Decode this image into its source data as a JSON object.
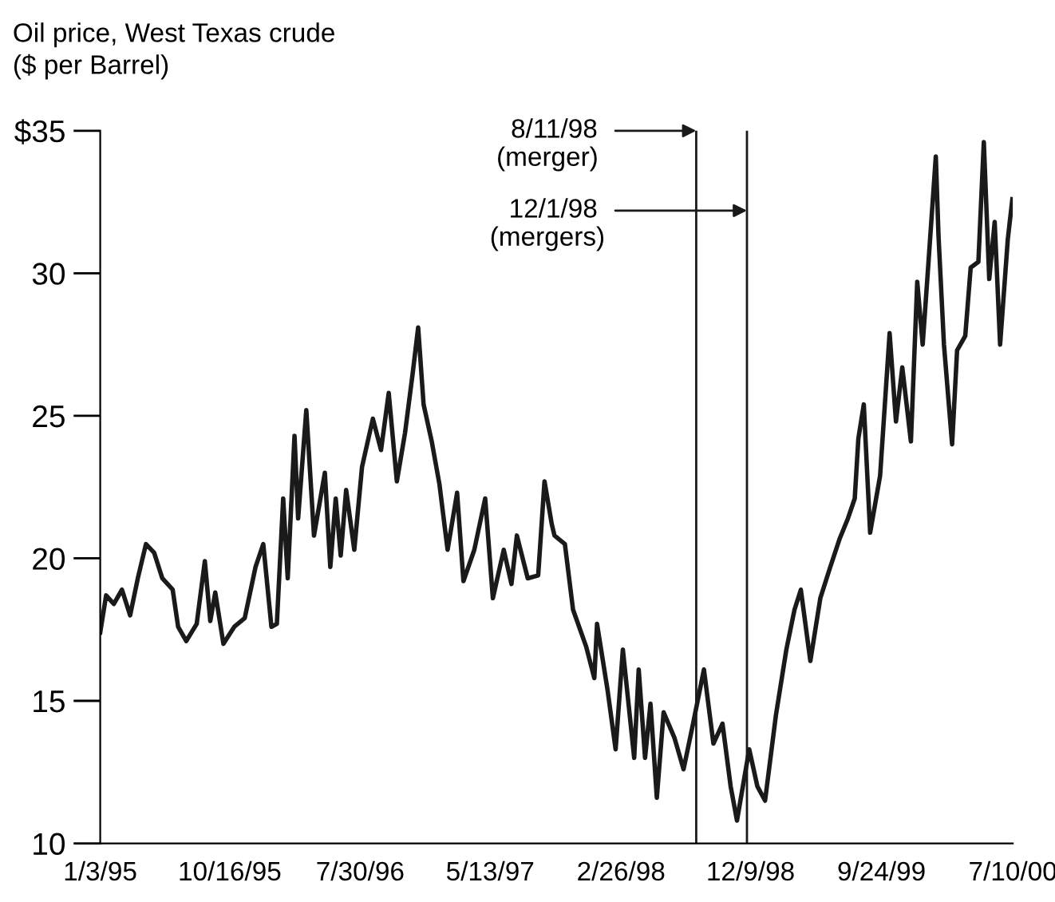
{
  "chart_data": {
    "type": "line",
    "title": "Oil price, West Texas crude",
    "subtitle": "($ per Barrel)",
    "x": [
      "1995-01-03",
      "1995-01-16",
      "1995-02-02",
      "1995-02-20",
      "1995-03-10",
      "1995-03-27",
      "1995-04-14",
      "1995-05-02",
      "1995-05-20",
      "1995-06-12",
      "1995-06-24",
      "1995-07-12",
      "1995-08-04",
      "1995-08-22",
      "1995-09-03",
      "1995-09-14",
      "1995-10-02",
      "1995-10-26",
      "1995-11-18",
      "1995-12-12",
      "1995-12-29",
      "1996-01-16",
      "1996-01-28",
      "1996-02-11",
      "1996-02-21",
      "1996-03-07",
      "1996-03-15",
      "1996-04-02",
      "1996-04-19",
      "1996-05-13",
      "1996-05-25",
      "1996-06-06",
      "1996-06-17",
      "1996-06-29",
      "1996-07-17",
      "1996-08-03",
      "1996-08-27",
      "1996-09-14",
      "1996-10-01",
      "1996-10-19",
      "1996-11-06",
      "1996-11-23",
      "1996-12-05",
      "1996-12-17",
      "1997-01-04",
      "1997-01-21",
      "1997-02-08",
      "1997-03-01",
      "1997-03-15",
      "1997-04-08",
      "1997-05-02",
      "1997-05-19",
      "1997-06-12",
      "1997-06-29",
      "1997-07-11",
      "1997-08-04",
      "1997-08-27",
      "1997-09-10",
      "1997-09-26",
      "1997-10-02",
      "1997-10-25",
      "1997-11-12",
      "1997-12-11",
      "1997-12-29",
      "1998-01-04",
      "1998-01-27",
      "1998-02-14",
      "1998-03-02",
      "1998-03-27",
      "1998-04-06",
      "1998-04-20",
      "1998-05-02",
      "1998-05-16",
      "1998-05-31",
      "1998-06-24",
      "1998-07-14",
      "1998-08-04",
      "1998-08-28",
      "1998-09-18",
      "1998-10-08",
      "1998-10-26",
      "1998-11-09",
      "1998-12-06",
      "1998-12-24",
      "1999-01-10",
      "1999-02-03",
      "1999-02-26",
      "1999-03-16",
      "1999-03-30",
      "1999-04-20",
      "1999-05-12",
      "1999-06-01",
      "1999-06-24",
      "1999-07-12",
      "1999-07-27",
      "1999-08-04",
      "1999-08-16",
      "1999-08-30",
      "1999-09-21",
      "1999-10-12",
      "1999-10-26",
      "1999-11-09",
      "1999-11-28",
      "1999-12-12",
      "1999-12-24",
      "2000-01-05",
      "2000-01-22",
      "2000-01-28",
      "2000-02-09",
      "2000-02-27",
      "2000-03-09",
      "2000-03-27",
      "2000-04-08",
      "2000-04-25",
      "2000-05-07",
      "2000-05-19",
      "2000-05-31",
      "2000-06-12",
      "2000-06-29",
      "2000-07-09"
    ],
    "series": [
      {
        "color": "#1a1a1a",
        "values": [
          17.4,
          18.7,
          18.4,
          18.9,
          18.0,
          19.3,
          20.5,
          20.2,
          19.3,
          18.9,
          17.6,
          17.1,
          17.7,
          19.9,
          17.8,
          18.8,
          17.0,
          17.6,
          17.9,
          19.7,
          20.5,
          17.6,
          17.7,
          22.1,
          19.3,
          24.3,
          21.4,
          25.2,
          20.8,
          23.0,
          19.7,
          22.1,
          20.1,
          22.4,
          20.3,
          23.2,
          24.9,
          23.8,
          25.8,
          22.7,
          24.4,
          26.5,
          28.1,
          25.4,
          24.1,
          22.6,
          20.3,
          22.3,
          19.2,
          20.3,
          22.1,
          18.6,
          20.3,
          19.1,
          20.8,
          19.3,
          19.4,
          22.7,
          21.2,
          20.8,
          20.5,
          18.2,
          16.9,
          15.8,
          17.7,
          15.4,
          13.3,
          16.8,
          13.0,
          16.1,
          13.0,
          14.9,
          11.6,
          14.6,
          13.7,
          12.6,
          14.2,
          16.1,
          13.5,
          14.2,
          12.0,
          10.8,
          13.3,
          12.0,
          11.5,
          14.5,
          16.8,
          18.2,
          18.9,
          16.4,
          18.6,
          19.6,
          20.7,
          21.4,
          22.1,
          24.2,
          25.4,
          20.9,
          22.9,
          27.9,
          24.8,
          26.7,
          24.1,
          29.7,
          27.5,
          30.2,
          34.1,
          31.3,
          27.5,
          24.0,
          27.3,
          27.8,
          30.2,
          30.4,
          34.6,
          29.8,
          31.8,
          27.5,
          31.2,
          32.6
        ]
      }
    ],
    "xlim": [
      "1995-01-03",
      "2000-07-10"
    ],
    "xticks": [
      {
        "value": "1995-01-03",
        "label": "1/3/95"
      },
      {
        "value": "1995-10-16",
        "label": "10/16/95"
      },
      {
        "value": "1996-07-30",
        "label": "7/30/96"
      },
      {
        "value": "1997-05-13",
        "label": "5/13/97"
      },
      {
        "value": "1998-02-26",
        "label": "2/26/98"
      },
      {
        "value": "1998-12-09",
        "label": "12/9/98"
      },
      {
        "value": "1999-09-24",
        "label": "9/24/99"
      },
      {
        "value": "2000-07-10",
        "label": "7/10/00"
      }
    ],
    "ylim": [
      10,
      35
    ],
    "yticks": [
      10,
      15,
      20,
      25,
      30,
      {
        "value": 35,
        "label": "$35"
      }
    ],
    "ref_lines": [
      {
        "axis": "x",
        "value": "1998-08-11",
        "label": "8/11/98",
        "color": "#1a1a1a"
      },
      {
        "axis": "x",
        "value": "1998-12-01",
        "label": "12/1/98",
        "color": "#1a1a1a"
      }
    ],
    "annotations": [
      {
        "text": "(merger)",
        "x": "1998-08-11",
        "y": 35
      },
      {
        "text": "(mergers)",
        "x": "1998-12-01",
        "y": 32.2
      }
    ],
    "grid": false,
    "marker": "none",
    "line_style": "solid"
  }
}
